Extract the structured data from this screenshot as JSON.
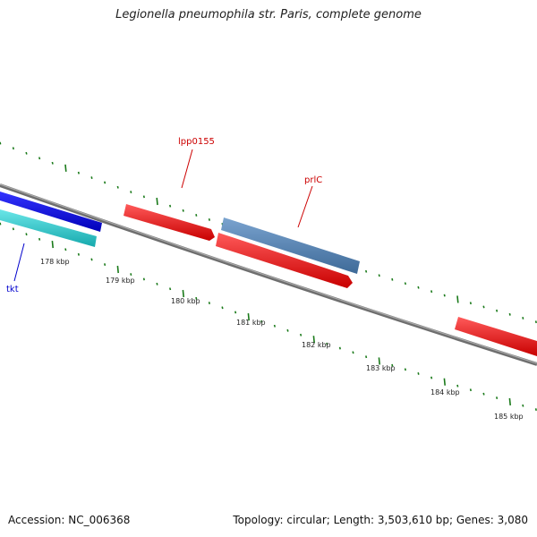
{
  "title": "Legionella pneumophila str. Paris, complete genome",
  "footer": {
    "accession": "Accession: NC_006368",
    "summary": "Topology: circular; Length: 3,503,610 bp; Genes: 3,080"
  },
  "ticks": [
    "178 kbp",
    "179 kbp",
    "180 kbp",
    "181 kbp",
    "182 kbp",
    "183 kbp",
    "184 kbp",
    "185 kbp"
  ],
  "gene_labels": {
    "lpp0155": "lpp0155",
    "prlC": "prlC",
    "tkt": "tkt"
  },
  "colors": {
    "forward_gene": "#ee1111",
    "highlight_gene": "#4f7fae",
    "blue_gene": "#1010dd",
    "cyan_gene": "#1fc8cc",
    "backbone": "#808080",
    "tick_green": "#1a7a1a",
    "label_red": "#cc0000",
    "label_blue": "#0000cc"
  }
}
